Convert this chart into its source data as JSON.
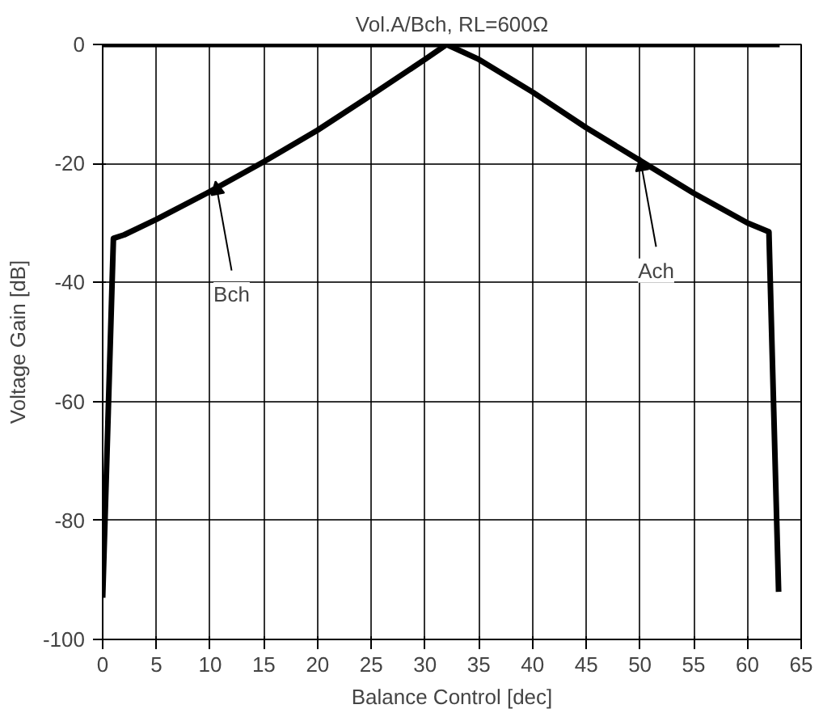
{
  "chart_data": {
    "type": "line",
    "title": "Vol.A/Bch, RL=600Ω",
    "xlabel": "Balance Control [dec]",
    "ylabel": "Voltage Gain [dB]",
    "xlim": [
      0,
      65
    ],
    "ylim": [
      -100,
      0
    ],
    "xticks": [
      0,
      5,
      10,
      15,
      20,
      25,
      30,
      35,
      40,
      45,
      50,
      55,
      60,
      65
    ],
    "yticks": [
      -100,
      -80,
      -60,
      -40,
      -20,
      0
    ],
    "grid": true,
    "marker": "none",
    "line_style": "solid",
    "series": [
      {
        "color": "#000000",
        "x": [
          0,
          63
        ],
        "values": [
          0,
          0
        ]
      },
      {
        "color": "#000000",
        "x": [
          0,
          1,
          2,
          5,
          10,
          15,
          20,
          25,
          30,
          32
        ],
        "values": [
          -93,
          -32.6,
          -32,
          -29.4,
          -24.7,
          -19.7,
          -14.4,
          -8.5,
          -2.5,
          0
        ]
      },
      {
        "color": "#000000",
        "x": [
          32,
          35,
          40,
          45,
          50,
          55,
          60,
          62,
          62.9
        ],
        "values": [
          0,
          -2.5,
          -8,
          -14,
          -19.5,
          -25,
          -30,
          -31.5,
          -92
        ]
      }
    ],
    "annotations": [
      {
        "text": "Bch",
        "x": 10.5,
        "y": -23
      },
      {
        "text": "Ach",
        "x": 50,
        "y": -19
      }
    ]
  }
}
